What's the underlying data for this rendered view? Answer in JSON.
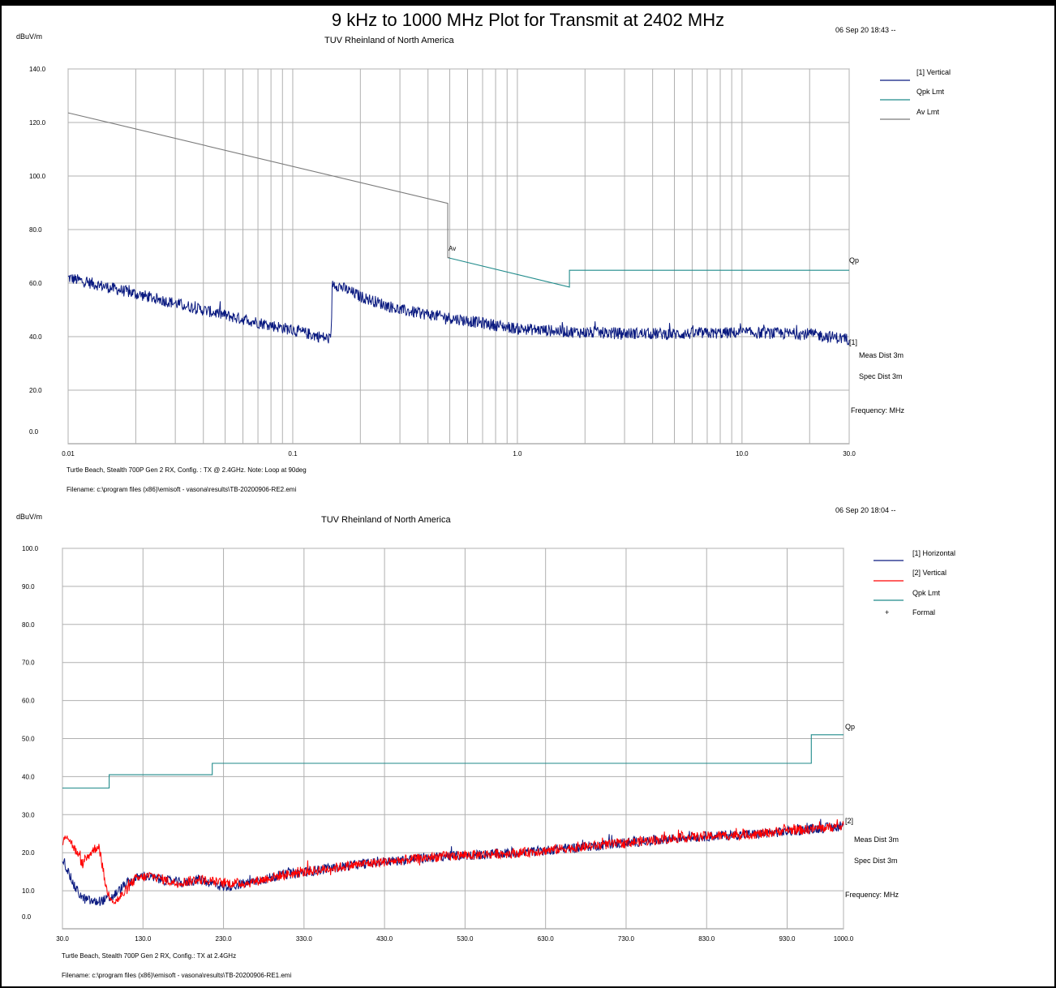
{
  "page_title": "9 kHz to 1000 MHz Plot for Transmit at 2402 MHz",
  "colors": {
    "trace_blue": "#0a1a80",
    "trace_red": "#ff0000",
    "limit_teal": "#1f8a8a",
    "limit_gray": "#7a7a7a",
    "grid": "#b0b0b0"
  },
  "chart_data": [
    {
      "type": "line",
      "title": "TUV Rheinland of North America",
      "ylabel": "dBuV/m",
      "xlabel": "Frequency: MHz",
      "x_scale": "log",
      "xlim": [
        0.01,
        30.0
      ],
      "ylim": [
        0.0,
        140.0
      ],
      "y_ticks": [
        "0.0",
        "20.0",
        "40.0",
        "60.0",
        "80.0",
        "100.0",
        "120.0",
        "140.0"
      ],
      "x_ticks": [
        "0.01",
        "0.1",
        "1.0",
        "10.0",
        "30.0"
      ],
      "stamp": "06 Sep 20 18:43 --",
      "meas_dist": "Meas Dist 3m",
      "spec_dist": "Spec Dist 3m",
      "trace_end_label": "[1]",
      "limit_end_label": "Qp",
      "av_marker": "Av",
      "caption": "Turtle Beach, Stealth 700P Gen 2 RX, Config. : TX @ 2.4GHz. Note: Loop at 90deg",
      "filename": "Filename: c:\\program files (x86)\\emisoft - vasona\\results\\TB-20200906-RE2.emi",
      "series": [
        {
          "name": "[1] Vertical",
          "color": "#0a1a80",
          "x": [
            0.01,
            0.02,
            0.05,
            0.1,
            0.148,
            0.15,
            0.16,
            0.2,
            0.3,
            0.5,
            1.0,
            2.0,
            5.0,
            10.0,
            20.0,
            30.0
          ],
          "values": [
            62,
            56,
            48,
            42.5,
            39,
            60,
            59,
            55,
            50,
            47,
            43,
            41.5,
            41,
            41.5,
            41,
            39
          ]
        },
        {
          "name": "Qpk Lmt",
          "color": "#1f8a8a",
          "x": [
            0.49,
            1.705,
            1.705,
            30.0
          ],
          "values": [
            69.5,
            58.5,
            64.8,
            64.8
          ]
        },
        {
          "name": "Av Lmt",
          "color": "#7a7a7a",
          "x": [
            0.01,
            0.49,
            0.49,
            0.5
          ],
          "values": [
            123.6,
            89.8,
            69.5,
            69.5
          ]
        }
      ]
    },
    {
      "type": "line",
      "title": "TUV Rheinland of North America",
      "ylabel": "dBuV/m",
      "xlabel": "Frequency: MHz",
      "x_scale": "linear",
      "xlim": [
        30.0,
        1000.0
      ],
      "ylim": [
        0.0,
        100.0
      ],
      "y_ticks": [
        "0.0",
        "10.0",
        "20.0",
        "30.0",
        "40.0",
        "50.0",
        "60.0",
        "70.0",
        "80.0",
        "90.0",
        "100.0"
      ],
      "x_ticks": [
        "30.0",
        "130.0",
        "230.0",
        "330.0",
        "430.0",
        "530.0",
        "630.0",
        "730.0",
        "830.0",
        "930.0",
        "1000.0"
      ],
      "stamp": "06 Sep 20 18:04 --",
      "meas_dist": "Meas Dist 3m",
      "spec_dist": "Spec Dist 3m",
      "trace_end_label": "[2]",
      "limit_end_label": "Qp",
      "caption": "Turtle Beach, Stealth 700P Gen 2 RX, Config.: TX at 2.4GHz",
      "filename": "Filename: c:\\program files (x86)\\emisoft - vasona\\results\\TB-20200906-RE1.emi",
      "legend_extra": {
        "symbol": "+",
        "name": "Formal"
      },
      "series": [
        {
          "name": "[1] Horizontal",
          "color": "#0a1a80",
          "x": [
            30,
            35,
            45,
            55,
            70,
            90,
            100,
            110,
            130,
            150,
            180,
            200,
            230,
            260,
            300,
            350,
            400,
            450,
            500,
            550,
            600,
            650,
            700,
            750,
            800,
            850,
            900,
            950,
            1000
          ],
          "values": [
            19,
            16,
            11,
            8,
            7,
            8,
            10,
            12,
            14,
            13,
            12,
            13,
            11,
            12,
            14,
            15.5,
            17,
            18,
            19,
            19.5,
            20,
            21,
            22,
            23,
            24,
            24.5,
            25,
            26,
            27
          ]
        },
        {
          "name": "[2] Vertical",
          "color": "#ff0000",
          "x": [
            30,
            35,
            45,
            55,
            65,
            75,
            85,
            95,
            105,
            120,
            140,
            170,
            200,
            230,
            260,
            300,
            350,
            400,
            450,
            500,
            550,
            600,
            650,
            700,
            750,
            800,
            850,
            900,
            930,
            950,
            1000
          ],
          "values": [
            22,
            25,
            21,
            17,
            20,
            22,
            10,
            7,
            9,
            13,
            14,
            12,
            13,
            12,
            12,
            14,
            15.5,
            17,
            18,
            19,
            19.5,
            20,
            21,
            22,
            23,
            24,
            24.5,
            25,
            26,
            26,
            27
          ]
        },
        {
          "name": "Qpk Lmt",
          "color": "#1f8a8a",
          "x": [
            30,
            88,
            88,
            216,
            216,
            960,
            960,
            1000
          ],
          "values": [
            37.0,
            37.0,
            40.5,
            40.5,
            43.5,
            43.5,
            51.0,
            51.0
          ]
        }
      ]
    }
  ]
}
